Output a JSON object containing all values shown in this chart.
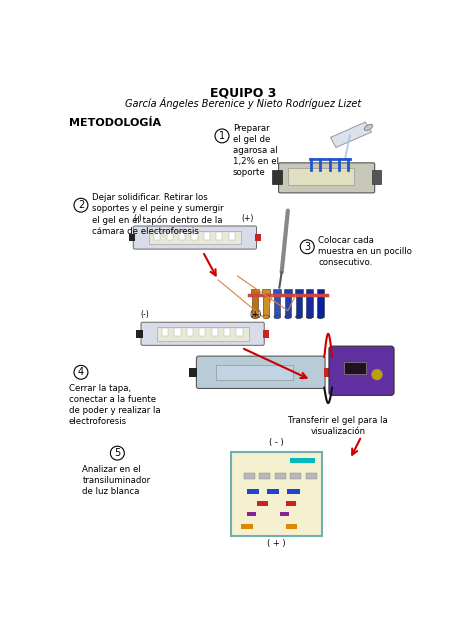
{
  "title": "EQUIPO 3",
  "subtitle": "García Ángeles Berenice y Nieto Rodríguez Lizet",
  "section": "METODOLOGÍA",
  "bg_color": "#ffffff",
  "text_color": "#000000",
  "arrow_color": "#cc0000",
  "gel_bg": "#f5f0d0",
  "gel_border": "#70b0b0",
  "step1_text": "Preparar\nel gel de\nagarosa al\n1,2% en el\nsoporte",
  "step2_text": "Dejar solidificar. Retirar los\nsoportes y el peine y sumergir\nel gel en el tapón dentro de la\ncámara de electroforesis",
  "step3_text": "Colocar cada\nmuestra en un pocillo\nconsecutivo.",
  "step4_text": "Cerrar la tapa,\nconectar a la fuente\nde poder y realizar la\nelectroforesis",
  "step5_text": "Analizar en el\ntransiluminador\nde luz blanca",
  "transfer_text": "Transferir el gel para la\nvisualización"
}
